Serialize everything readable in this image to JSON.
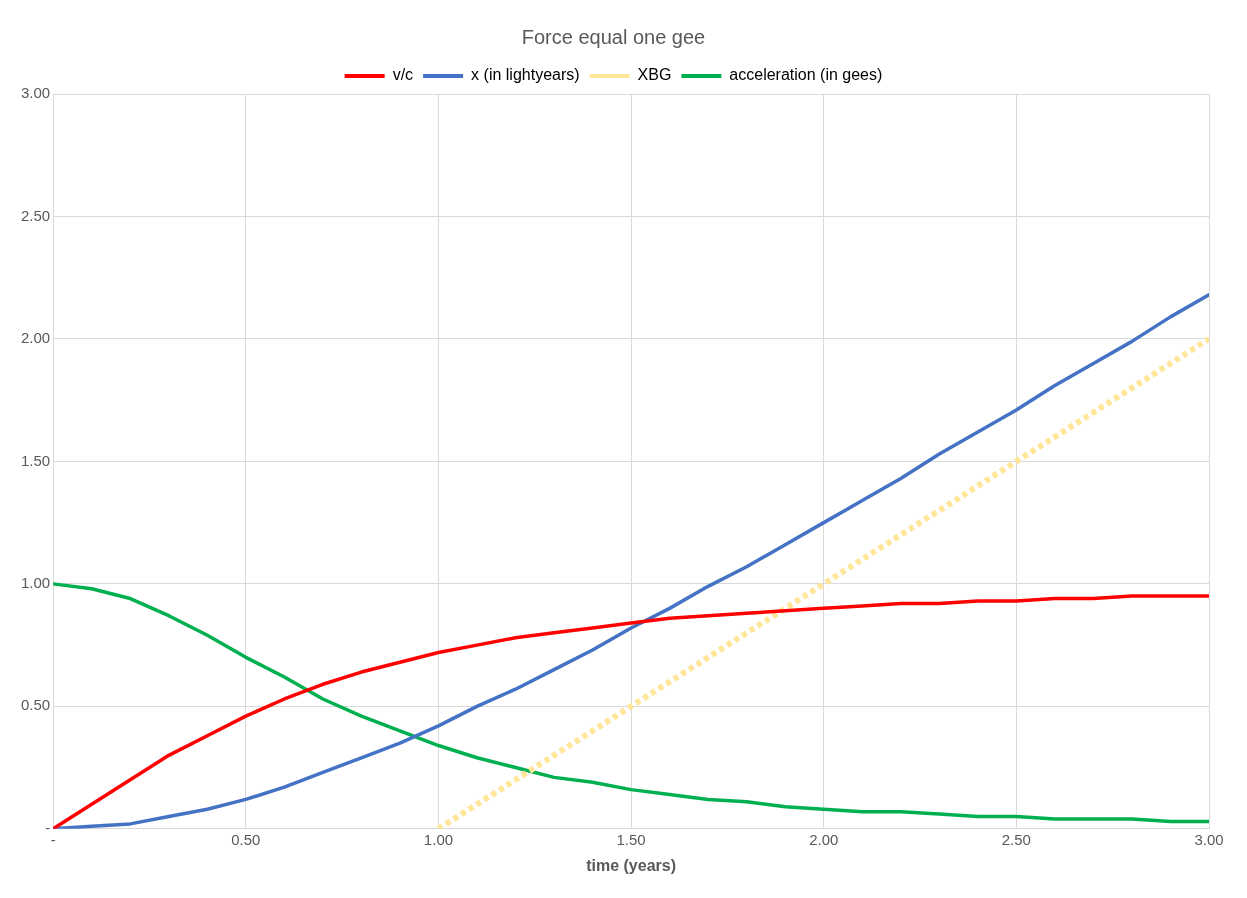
{
  "chart_data": {
    "type": "line",
    "title": "Force equal one gee",
    "xlabel": "time (years)",
    "x": [
      0,
      0.1,
      0.2,
      0.3,
      0.4,
      0.5,
      0.6,
      0.7,
      0.8,
      0.9,
      1.0,
      1.1,
      1.2,
      1.3,
      1.4,
      1.5,
      1.6,
      1.7,
      1.8,
      1.9,
      2.0,
      2.1,
      2.2,
      2.3,
      2.4,
      2.5,
      2.6,
      2.7,
      2.8,
      2.9,
      3.0
    ],
    "series": [
      {
        "name": "v/c",
        "color": "#ff0000",
        "line_style": "solid",
        "values": [
          0,
          0.1,
          0.2,
          0.3,
          0.38,
          0.46,
          0.53,
          0.59,
          0.64,
          0.68,
          0.72,
          0.75,
          0.78,
          0.8,
          0.82,
          0.84,
          0.86,
          0.87,
          0.88,
          0.89,
          0.9,
          0.91,
          0.92,
          0.92,
          0.93,
          0.93,
          0.94,
          0.94,
          0.95,
          0.95,
          0.95
        ]
      },
      {
        "name": "x (in lightyears)",
        "color": "#4472c4",
        "line_style": "solid",
        "values": [
          0,
          0.01,
          0.02,
          0.05,
          0.08,
          0.12,
          0.17,
          0.23,
          0.29,
          0.35,
          0.42,
          0.5,
          0.57,
          0.65,
          0.73,
          0.82,
          0.9,
          0.99,
          1.07,
          1.16,
          1.25,
          1.34,
          1.43,
          1.53,
          1.62,
          1.71,
          1.81,
          1.9,
          1.99,
          2.09,
          2.18
        ]
      },
      {
        "name": "XBG",
        "color": "#ffe699",
        "line_style": "dotted",
        "x": [
          1,
          3
        ],
        "values": [
          0,
          2
        ]
      },
      {
        "name": "acceleration (in gees)",
        "color": "#00b050",
        "line_style": "solid",
        "values": [
          1,
          0.98,
          0.94,
          0.87,
          0.79,
          0.7,
          0.62,
          0.53,
          0.46,
          0.4,
          0.34,
          0.29,
          0.25,
          0.21,
          0.19,
          0.16,
          0.14,
          0.12,
          0.11,
          0.09,
          0.08,
          0.07,
          0.07,
          0.06,
          0.05,
          0.05,
          0.04,
          0.04,
          0.04,
          0.03,
          0.03
        ]
      }
    ],
    "xlim": [
      0,
      3
    ],
    "xticks": [
      {
        "value": 0,
        "label": "-"
      },
      {
        "value": 0.5,
        "label": "0.50"
      },
      {
        "value": 1,
        "label": "1.00"
      },
      {
        "value": 1.5,
        "label": "1.50"
      },
      {
        "value": 2,
        "label": "2.00"
      },
      {
        "value": 2.5,
        "label": "2.50"
      },
      {
        "value": 3,
        "label": "3.00"
      }
    ],
    "ylim": [
      0,
      3
    ],
    "yticks": [
      {
        "value": 0,
        "label": "-"
      },
      {
        "value": 0.5,
        "label": "0.50"
      },
      {
        "value": 1,
        "label": "1.00"
      },
      {
        "value": 1.5,
        "label": "1.50"
      },
      {
        "value": 2,
        "label": "2.00"
      },
      {
        "value": 2.5,
        "label": "2.50"
      },
      {
        "value": 3,
        "label": "3.00"
      }
    ],
    "grid": true,
    "legend": "top",
    "marker": "none"
  }
}
